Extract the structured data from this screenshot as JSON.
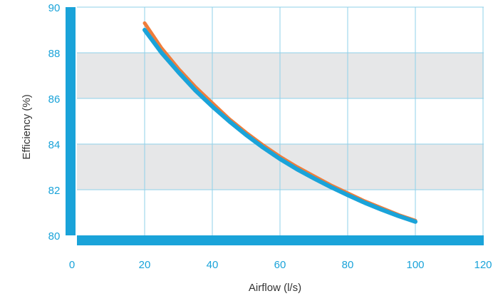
{
  "chart_data": {
    "type": "line",
    "title": "",
    "xlabel": "Airflow (l/s)",
    "ylabel": "Efficiency (%)",
    "xlim": [
      0,
      120
    ],
    "ylim": [
      80,
      90
    ],
    "x_ticks": [
      0,
      20,
      40,
      60,
      80,
      100,
      120
    ],
    "y_ticks": [
      80,
      82,
      84,
      86,
      88,
      90
    ],
    "grid": true,
    "shaded_bands": [
      [
        82,
        84
      ],
      [
        86,
        88
      ]
    ],
    "series": [
      {
        "color": "#f07d3a",
        "x": [
          20,
          25,
          30,
          35,
          40,
          45,
          50,
          55,
          60,
          65,
          70,
          75,
          80,
          85,
          90,
          95,
          100
        ],
        "y": [
          89.3,
          88.2,
          87.3,
          86.5,
          85.8,
          85.1,
          84.5,
          83.95,
          83.45,
          83.0,
          82.6,
          82.2,
          81.85,
          81.5,
          81.2,
          80.9,
          80.65
        ]
      },
      {
        "color": "#1aa3d9",
        "x": [
          20,
          25,
          30,
          35,
          40,
          45,
          50,
          55,
          60,
          65,
          70,
          75,
          80,
          85,
          90,
          95,
          100
        ],
        "y": [
          89.0,
          88.0,
          87.15,
          86.35,
          85.65,
          85.0,
          84.4,
          83.85,
          83.35,
          82.9,
          82.5,
          82.12,
          81.77,
          81.43,
          81.13,
          80.85,
          80.6
        ]
      }
    ],
    "colors": {
      "axis": "#1aa3d9",
      "grid": "#8fd0ea",
      "band": "#e6e7e8"
    }
  }
}
